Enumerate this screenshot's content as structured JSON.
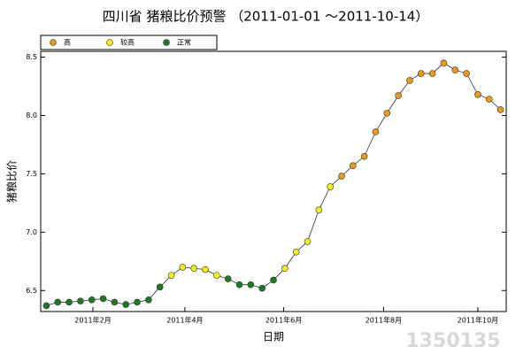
{
  "chart_data": {
    "type": "line",
    "title": "四川省 猪粮比价预警 （2011-01-01 ～2011-10-14）",
    "y_label": "猪粮比价",
    "x_label": "日期",
    "watermark": "1350135",
    "legend": [
      {
        "name": "高",
        "color": "#e89a1c"
      },
      {
        "name": "较高",
        "color": "#f2ef1a"
      },
      {
        "name": "正常",
        "color": "#1b7a22"
      }
    ],
    "categories": [
      null,
      null,
      null,
      null,
      null,
      null,
      null,
      null,
      null,
      null,
      null,
      null,
      null,
      null,
      null,
      null,
      null,
      null,
      null,
      null,
      null,
      null,
      null,
      null,
      null,
      null,
      null,
      null,
      null,
      null,
      null,
      null,
      null,
      null,
      null,
      null,
      null,
      null,
      null,
      null,
      null
    ],
    "values": [
      6.37,
      6.4,
      6.4,
      6.41,
      6.42,
      6.43,
      6.4,
      6.38,
      6.4,
      6.42,
      6.53,
      6.63,
      6.7,
      6.69,
      6.68,
      6.63,
      6.6,
      6.55,
      6.55,
      6.52,
      6.59,
      6.69,
      6.83,
      6.92,
      7.19,
      7.39,
      7.48,
      7.57,
      7.65,
      7.86,
      8.02,
      8.17,
      8.3,
      8.36,
      8.36,
      8.45,
      8.39,
      8.36,
      8.18,
      8.14,
      8.05
    ],
    "levels": [
      2,
      2,
      2,
      2,
      2,
      2,
      2,
      2,
      2,
      2,
      2,
      1,
      1,
      1,
      1,
      1,
      2,
      2,
      2,
      2,
      2,
      1,
      1,
      1,
      1,
      1,
      0,
      0,
      0,
      0,
      0,
      0,
      0,
      0,
      0,
      0,
      0,
      0,
      0,
      0,
      0
    ],
    "line_color": "#333333",
    "xlim": [
      -0.5,
      40.5
    ],
    "xticks": [
      {
        "value": 4.1,
        "label": "2011年2月"
      },
      {
        "value": 12.2,
        "label": "2011年4月"
      },
      {
        "value": 20.9,
        "label": "2011年6月"
      },
      {
        "value": 29.7,
        "label": "2011年8月"
      },
      {
        "value": 38,
        "label": "2011年10月"
      }
    ],
    "ylim": [
      6.32,
      8.55
    ],
    "yticks": [
      6.5,
      {
        "value": 7,
        "label": "7.0"
      },
      7.5,
      {
        "value": 8,
        "label": "8.0"
      },
      8.5
    ]
  }
}
